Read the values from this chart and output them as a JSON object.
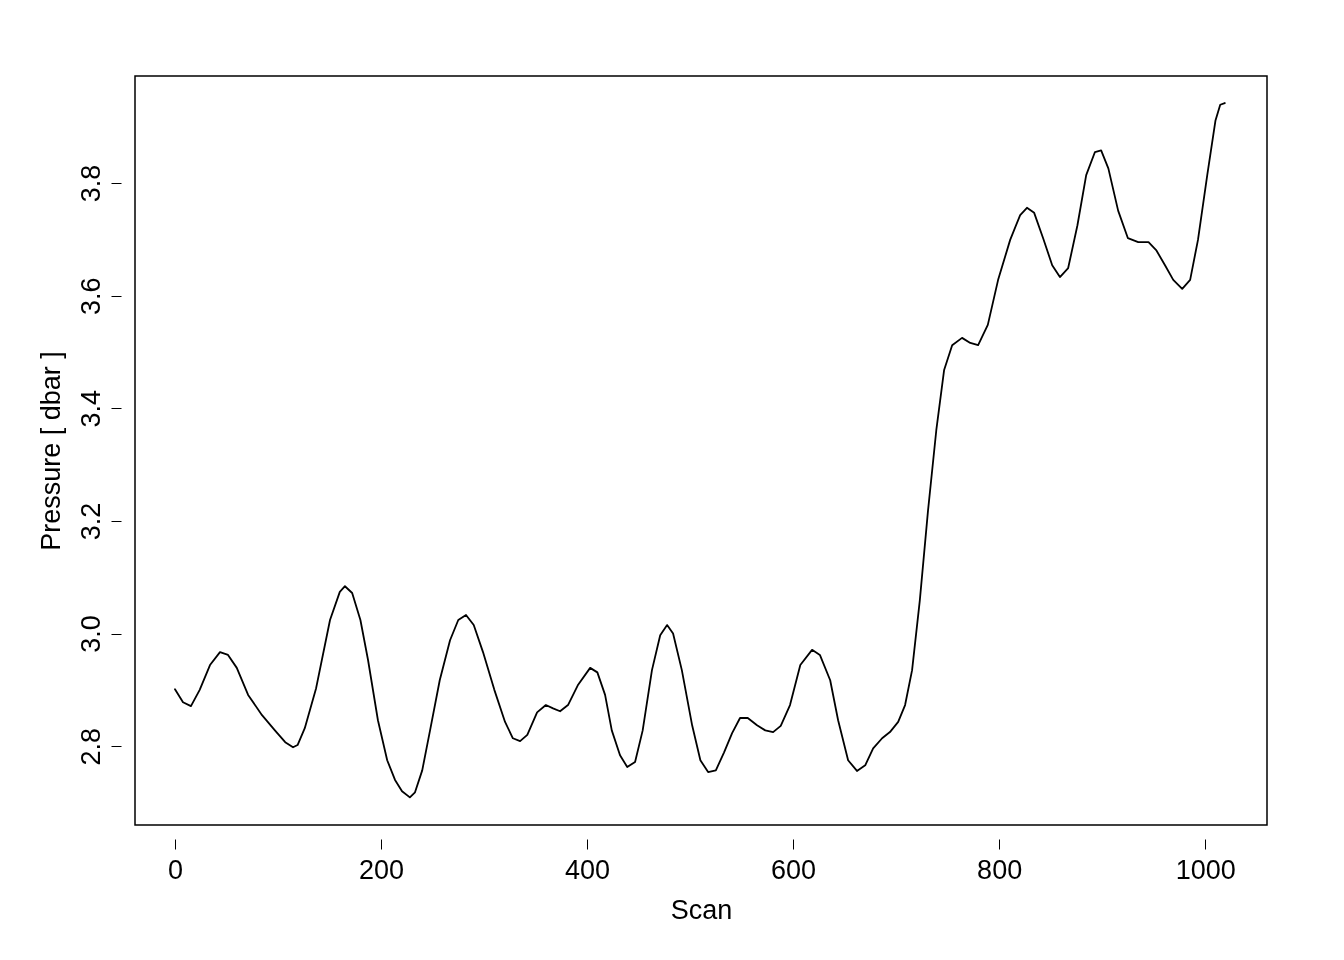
{
  "chart_data": {
    "type": "line",
    "xlabel": "Scan",
    "ylabel": "Pressure [ dbar ]",
    "xlim": [
      -38.8,
      1060
    ],
    "ylim": [
      2.66,
      3.99
    ],
    "xticks": [
      0,
      200,
      400,
      600,
      800,
      1000
    ],
    "yticks": [
      2.8,
      {
        "value": 3,
        "label": "3.0"
      },
      3.2,
      3.4,
      3.6,
      3.8
    ],
    "grid": false,
    "marker": "none",
    "line_style": "solid",
    "series": [
      {
        "color": "#000000",
        "x": [
          0,
          7.8,
          15.5,
          24,
          34,
          43.7,
          51.5,
          60,
          71,
          84.5,
          97,
          107,
          114.6,
          119,
          126,
          137,
          150.5,
          160,
          165,
          172,
          180,
          187.4,
          197,
          206,
          213.6,
          220.4,
          228,
          233,
          240,
          247.6,
          257,
          267,
          275,
          282.5,
          290,
          299,
          310,
          320.4,
          328,
          335,
          342,
          351.5,
          360,
          367,
          373.8,
          381.5,
          391,
          403,
          410,
          417.5,
          424,
          432,
          439,
          446.6,
          454,
          463,
          471,
          477.7,
          483.5,
          492,
          502,
          510,
          517.5,
          525,
          533,
          540.8,
          548.5,
          556,
          565,
          573,
          580.6,
          588,
          597,
          607,
          618.4,
          626,
          636,
          643.7,
          653.4,
          662,
          670,
          677.7,
          686.4,
          694,
          702,
          708.7,
          715.5,
          723,
          731,
          739,
          746.6,
          754.4,
          764,
          772,
          779.6,
          789,
          799,
          810.7,
          820.4,
          827,
          834,
          842.7,
          851.5,
          859,
          867,
          876,
          884.5,
          893,
          899,
          906,
          915.5,
          925,
          935,
          945,
          952.4,
          961,
          969,
          977.7,
          985.4,
          993,
          1002,
          1010,
          1014.6,
          1019
        ],
        "values": [
          2.901,
          2.878,
          2.871,
          2.9,
          2.944,
          2.967,
          2.962,
          2.939,
          2.891,
          2.855,
          2.828,
          2.807,
          2.798,
          2.802,
          2.832,
          2.903,
          3.024,
          3.074,
          3.084,
          3.072,
          3.024,
          2.953,
          2.846,
          2.775,
          2.74,
          2.72,
          2.709,
          2.718,
          2.757,
          2.828,
          2.917,
          2.988,
          3.024,
          3.033,
          3.015,
          2.967,
          2.9,
          2.843,
          2.814,
          2.809,
          2.82,
          2.86,
          2.873,
          2.867,
          2.862,
          2.873,
          2.908,
          2.939,
          2.931,
          2.891,
          2.828,
          2.784,
          2.763,
          2.772,
          2.828,
          2.935,
          2.997,
          3.015,
          3.0,
          2.935,
          2.837,
          2.775,
          2.754,
          2.757,
          2.789,
          2.823,
          2.85,
          2.85,
          2.837,
          2.828,
          2.825,
          2.836,
          2.873,
          2.944,
          2.971,
          2.962,
          2.917,
          2.846,
          2.775,
          2.756,
          2.766,
          2.796,
          2.814,
          2.825,
          2.843,
          2.873,
          2.935,
          3.059,
          3.219,
          3.361,
          3.468,
          3.512,
          3.525,
          3.516,
          3.512,
          3.548,
          3.628,
          3.699,
          3.743,
          3.756,
          3.747,
          3.702,
          3.654,
          3.633,
          3.649,
          3.725,
          3.814,
          3.855,
          3.858,
          3.826,
          3.751,
          3.702,
          3.695,
          3.695,
          3.681,
          3.654,
          3.628,
          3.612,
          3.628,
          3.699,
          3.814,
          3.911,
          3.939,
          3.942
        ]
      }
    ]
  }
}
